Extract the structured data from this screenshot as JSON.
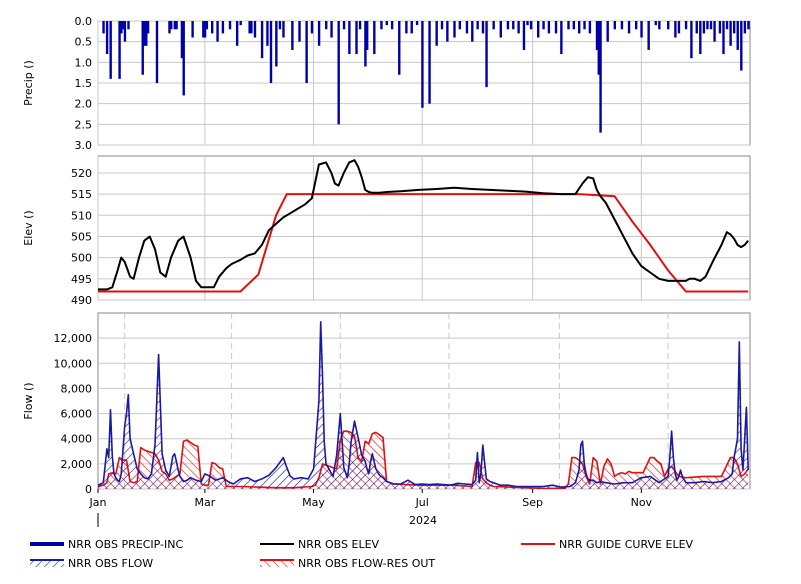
{
  "colors": {
    "precip": "#0000a8",
    "flow": "#1a1aa0",
    "elev": "#000000",
    "guide": "#e01010",
    "grid": "#c8c8c8"
  },
  "chart_data": [
    {
      "type": "bar",
      "ylabel": "Precip ()",
      "ylim": [
        3.0,
        0.0
      ],
      "inverted": true,
      "yticks": [
        "0.0",
        "0.5",
        "1.0",
        "1.5",
        "2.0",
        "2.5",
        "3.0"
      ],
      "grid": true,
      "series": [
        {
          "name": "NRR OBS PRECIP-INC",
          "x": [
            3,
            5,
            7,
            12,
            13,
            14,
            15,
            17,
            25,
            26,
            27,
            28,
            33,
            40,
            41,
            43,
            44,
            47,
            48,
            53,
            59,
            60,
            61,
            64,
            67,
            70,
            74,
            78,
            80,
            85,
            86,
            88,
            92,
            95,
            97,
            100,
            102,
            104,
            109,
            113,
            117,
            120,
            124,
            128,
            131,
            135,
            138,
            141,
            145,
            147,
            150,
            151,
            155,
            159,
            162,
            165,
            169,
            173,
            176,
            179,
            182,
            186,
            190,
            193,
            196,
            200,
            203,
            207,
            210,
            213,
            216,
            218,
            222,
            226,
            230,
            233,
            236,
            239,
            241,
            243,
            247,
            250,
            253,
            257,
            260,
            264,
            267,
            270,
            273,
            276,
            280,
            281,
            282,
            286,
            290,
            294,
            298,
            302,
            305,
            309,
            313,
            315,
            320,
            324,
            326,
            330,
            333,
            336,
            338,
            340,
            342,
            344,
            346,
            349,
            351,
            353,
            355,
            357,
            359,
            361,
            363,
            365
          ],
          "values": [
            0.3,
            0.8,
            1.4,
            1.4,
            0.3,
            0.2,
            0.5,
            0.2,
            1.3,
            0.6,
            0.6,
            0.3,
            1.5,
            0.3,
            0.2,
            0.2,
            0.2,
            0.9,
            1.8,
            0.4,
            0.4,
            0.4,
            0.2,
            0.3,
            0.5,
            0.3,
            0.2,
            0.6,
            0.1,
            0.3,
            0.3,
            0.4,
            0.9,
            0.6,
            1.5,
            1.1,
            0.2,
            0.4,
            0.7,
            0.5,
            1.5,
            0.3,
            0.6,
            0.2,
            0.4,
            2.5,
            0.2,
            0.8,
            0.8,
            0.2,
            1.1,
            0.7,
            0.8,
            0.2,
            0.1,
            0.2,
            1.3,
            0.3,
            0.3,
            0.1,
            2.1,
            2.0,
            0.6,
            0.2,
            0.5,
            0.4,
            0.2,
            0.3,
            0.5,
            0.2,
            0.3,
            1.6,
            0.2,
            0.4,
            0.2,
            0.2,
            0.3,
            0.7,
            0.1,
            0.2,
            0.4,
            0.2,
            0.3,
            0.3,
            0.8,
            0.2,
            0.2,
            0.3,
            0.2,
            0.3,
            0.7,
            1.3,
            2.7,
            0.5,
            0.2,
            0.2,
            0.3,
            0.2,
            0.4,
            0.7,
            0.1,
            0.2,
            0.2,
            0.4,
            0.3,
            0.2,
            0.9,
            0.3,
            0.8,
            0.3,
            0.2,
            0.2,
            0.5,
            0.3,
            0.8,
            0.2,
            0.6,
            0.3,
            0.7,
            1.2,
            0.3,
            0.2
          ]
        }
      ]
    },
    {
      "type": "line",
      "ylabel": "Elev ()",
      "ylim": [
        490,
        524
      ],
      "yticks": [
        "490",
        "495",
        "500",
        "505",
        "510",
        "515",
        "520"
      ],
      "grid": true,
      "series": [
        {
          "name": "NRR OBS ELEV",
          "x": [
            0,
            3,
            5,
            8,
            11,
            13,
            15,
            18,
            20,
            23,
            26,
            29,
            32,
            35,
            38,
            41,
            45,
            48,
            52,
            55,
            58,
            60,
            62,
            65,
            68,
            72,
            75,
            80,
            84,
            88,
            92,
            96,
            100,
            104,
            108,
            112,
            116,
            120,
            124,
            128,
            131,
            133,
            135,
            138,
            141,
            144,
            146,
            148,
            150,
            152,
            154,
            156,
            158,
            162,
            170,
            180,
            190,
            200,
            210,
            220,
            230,
            240,
            250,
            260,
            268,
            272,
            275,
            278,
            280,
            282,
            285,
            290,
            295,
            300,
            305,
            310,
            315,
            320,
            325,
            330,
            332,
            335,
            338,
            341,
            345,
            350,
            353,
            355,
            357,
            359,
            361,
            363,
            365
          ],
          "values": [
            492.5,
            492.5,
            492.5,
            493,
            497,
            500,
            499,
            495.5,
            495,
            500,
            504,
            505,
            502,
            496.5,
            495.5,
            500,
            504,
            505,
            500,
            494.5,
            493,
            493,
            493,
            493,
            495.5,
            497.5,
            498.5,
            499.5,
            500.5,
            501,
            503,
            506.5,
            508,
            509.5,
            510.5,
            511.5,
            512.5,
            514,
            522,
            522.5,
            520,
            517.5,
            517,
            520,
            522.5,
            523,
            521.5,
            519,
            516,
            515.5,
            515.3,
            515.3,
            515.3,
            515.5,
            515.7,
            516,
            516.2,
            516.5,
            516.2,
            516,
            515.8,
            515.6,
            515.2,
            515.0,
            515,
            517.5,
            519,
            518.7,
            516,
            514.5,
            513,
            509,
            505,
            501,
            498,
            496.5,
            495,
            494.5,
            494.5,
            494.5,
            495,
            495,
            494.5,
            495.5,
            499,
            503,
            506,
            505.5,
            504.5,
            503,
            502.5,
            503,
            504
          ]
        },
        {
          "name": "NRR GUIDE CURVE ELEV",
          "x": [
            0,
            75,
            80,
            90,
            100,
            106,
            260,
            262,
            270,
            290,
            300,
            310,
            320,
            330,
            335,
            365
          ],
          "values": [
            492,
            492,
            492,
            496,
            510,
            515,
            515,
            515,
            515,
            514.5,
            508.5,
            503,
            497,
            492,
            492,
            492
          ]
        }
      ]
    },
    {
      "type": "area",
      "ylabel": "Flow ()",
      "xlabel": "2024",
      "ylim": [
        0,
        14000
      ],
      "yticks": [
        "0",
        "2,000",
        "4,000",
        "6,000",
        "8,000",
        "10,000",
        "12,000"
      ],
      "xticks": [
        "Jan",
        "Mar",
        "May",
        "Jul",
        "Sep",
        "Nov"
      ],
      "xtick_days": [
        0,
        60,
        121,
        182,
        244,
        305
      ],
      "grid": true,
      "series": [
        {
          "name": "NRR OBS FLOW",
          "x": [
            0,
            3,
            5,
            6,
            7,
            8,
            9,
            10,
            11,
            12,
            13,
            14,
            15,
            16,
            17,
            18,
            20,
            22,
            24,
            26,
            28,
            30,
            32,
            34,
            36,
            38,
            40,
            42,
            43,
            44,
            45,
            46,
            47,
            48,
            50,
            52,
            55,
            58,
            60,
            63,
            66,
            70,
            73,
            76,
            80,
            84,
            88,
            92,
            96,
            100,
            104,
            106,
            108,
            110,
            114,
            118,
            121,
            124,
            125,
            126,
            127,
            128,
            130,
            132,
            134,
            136,
            137,
            138,
            139,
            140,
            141,
            142,
            144,
            146,
            148,
            150,
            151,
            152,
            153,
            154,
            156,
            158,
            160,
            162,
            166,
            170,
            174,
            178,
            182,
            186,
            190,
            194,
            198,
            202,
            206,
            210,
            212,
            213,
            214,
            215,
            216,
            218,
            220,
            222,
            224,
            226,
            230,
            235,
            240,
            245,
            250,
            255,
            260,
            265,
            268,
            270,
            271,
            272,
            273,
            274,
            275,
            276,
            278,
            280,
            282,
            285,
            290,
            295,
            300,
            305,
            310,
            315,
            318,
            320,
            321,
            322,
            323,
            324,
            325,
            326,
            327,
            328,
            330,
            335,
            340,
            345,
            350,
            354,
            356,
            357,
            358,
            359,
            360,
            361,
            362,
            363,
            364,
            365
          ],
          "values": [
            300,
            500,
            3200,
            2500,
            6300,
            2600,
            1200,
            900,
            700,
            600,
            1200,
            3000,
            5000,
            6000,
            7500,
            4000,
            2800,
            1600,
            1200,
            900,
            800,
            1200,
            3500,
            10700,
            2800,
            1500,
            1000,
            2600,
            2800,
            2200,
            1500,
            1000,
            800,
            600,
            700,
            900,
            700,
            600,
            1200,
            1000,
            700,
            900,
            600,
            400,
            800,
            900,
            600,
            800,
            1100,
            1700,
            2500,
            1700,
            1000,
            800,
            900,
            800,
            1600,
            7000,
            13300,
            9000,
            3800,
            2000,
            1500,
            1000,
            2700,
            6000,
            3800,
            1700,
            1300,
            900,
            2000,
            3700,
            5400,
            4100,
            2700,
            2200,
            1600,
            1200,
            2200,
            2800,
            1600,
            1100,
            900,
            600,
            400,
            400,
            700,
            350,
            400,
            350,
            400,
            350,
            300,
            450,
            400,
            350,
            700,
            2900,
            500,
            1300,
            3500,
            800,
            600,
            500,
            400,
            300,
            300,
            200,
            200,
            200,
            200,
            300,
            150,
            200,
            500,
            1500,
            3500,
            3800,
            2000,
            1200,
            800,
            700,
            700,
            500,
            600,
            500,
            400,
            500,
            500,
            900,
            1000,
            500,
            800,
            1000,
            2500,
            4600,
            2500,
            1200,
            700,
            1000,
            1500,
            1000,
            500,
            500,
            600,
            500,
            600,
            900,
            1200,
            2500,
            3200,
            4000,
            11700,
            3200,
            1500,
            4000,
            6500,
            1500
          ]
        },
        {
          "name": "NRR OBS FLOW-RES OUT",
          "x": [
            0,
            3,
            5,
            6,
            8,
            10,
            12,
            14,
            16,
            18,
            20,
            22,
            24,
            26,
            28,
            30,
            32,
            34,
            36,
            38,
            40,
            42,
            44,
            46,
            48,
            50,
            52,
            54,
            56,
            58,
            60,
            62,
            64,
            66,
            68,
            70,
            72,
            80,
            100,
            110,
            120,
            122,
            124,
            126,
            128,
            130,
            132,
            134,
            136,
            138,
            140,
            142,
            144,
            146,
            148,
            150,
            152,
            154,
            156,
            158,
            160,
            162,
            166,
            180,
            200,
            210,
            212,
            214,
            216,
            218,
            220,
            222,
            240,
            250,
            260,
            262,
            264,
            266,
            268,
            270,
            272,
            274,
            276,
            278,
            280,
            282,
            284,
            286,
            288,
            290,
            292,
            294,
            296,
            298,
            300,
            302,
            304,
            306,
            310,
            312,
            314,
            316,
            318,
            320,
            322,
            324,
            326,
            330,
            340,
            350,
            355,
            357,
            359,
            361,
            363,
            365
          ],
          "values": [
            200,
            300,
            500,
            1200,
            1300,
            1200,
            2500,
            2300,
            2300,
            600,
            500,
            600,
            3300,
            3100,
            3000,
            2900,
            2800,
            2300,
            1400,
            1200,
            700,
            800,
            1000,
            1200,
            3800,
            3900,
            3700,
            3500,
            3400,
            400,
            300,
            300,
            2100,
            2000,
            1700,
            1600,
            200,
            200,
            100,
            100,
            200,
            300,
            900,
            2000,
            1900,
            1800,
            1700,
            1600,
            3900,
            4600,
            4600,
            4500,
            4200,
            2500,
            2200,
            3800,
            3600,
            4400,
            4500,
            4300,
            4100,
            600,
            400,
            300,
            300,
            200,
            2100,
            2100,
            800,
            500,
            300,
            200,
            100,
            50,
            50,
            50,
            400,
            2500,
            2500,
            2300,
            2000,
            1000,
            400,
            2500,
            2200,
            400,
            1800,
            2400,
            2000,
            1000,
            1200,
            1300,
            1200,
            1400,
            1300,
            1300,
            1300,
            1300,
            2500,
            2500,
            2200,
            2000,
            1000,
            1600,
            1800,
            1400,
            1000,
            900,
            1000,
            1000,
            2500,
            2500,
            2000,
            1000,
            1200,
            1600
          ]
        }
      ]
    }
  ],
  "legend": {
    "items": [
      {
        "label": "NRR OBS PRECIP-INC",
        "style": "thick-blue"
      },
      {
        "label": "NRR OBS ELEV",
        "style": "black-line"
      },
      {
        "label": "NRR GUIDE CURVE ELEV",
        "style": "red-line"
      },
      {
        "label": "NRR OBS FLOW",
        "style": "blue-hatch"
      },
      {
        "label": "NRR OBS FLOW-RES OUT",
        "style": "red-hatch"
      }
    ]
  }
}
